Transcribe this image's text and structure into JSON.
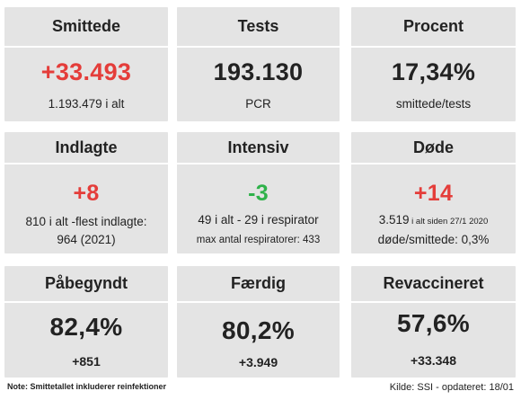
{
  "cards": {
    "smittede": {
      "title": "Smittede",
      "value": "+33.493",
      "sub": "1.193.479 i alt"
    },
    "tests": {
      "title": "Tests",
      "value": "193.130",
      "sub": "PCR"
    },
    "procent": {
      "title": "Procent",
      "value": "17,34%",
      "sub": "smittede/tests"
    },
    "indlagte": {
      "title": "Indlagte",
      "value": "+8",
      "sub1": "810 i alt -flest indlagte:",
      "sub2": "964 (2021)"
    },
    "intensiv": {
      "title": "Intensiv",
      "value": "-3",
      "sub1": "49 i alt - 29 i respirator",
      "sub2": "max antal respiratorer: 433"
    },
    "doede": {
      "title": "Døde",
      "value": "+14",
      "sub1_main": "3.519",
      "sub1_small": " i alt siden 27/1 2020",
      "sub2": "døde/smittede: 0,3%"
    },
    "paabegyndt": {
      "title": "Påbegyndt",
      "value": "82,4%",
      "sub": "+851"
    },
    "faerdig": {
      "title": "Færdig",
      "value": "80,2%",
      "sub": "+3.949"
    },
    "revaccineret": {
      "title": "Revaccineret",
      "value": "57,6%",
      "sub": "+33.348"
    }
  },
  "footer": {
    "note": "Note: Smittetallet inkluderer reinfektioner",
    "source": "Kilde: SSI - opdateret: 18/01"
  },
  "colors": {
    "increase": "#e43d3a",
    "decrease": "#2fb24a",
    "card_bg": "#e4e4e4"
  }
}
